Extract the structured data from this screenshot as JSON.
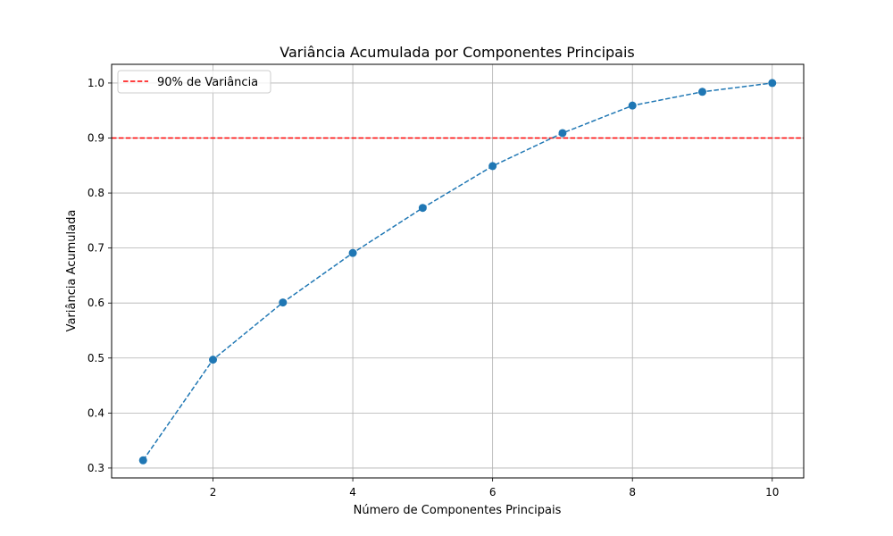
{
  "chart_data": {
    "type": "line",
    "title": "Variância Acumulada por Componentes Principais",
    "xlabel": "Número de Componentes Principais",
    "ylabel": "Variância Acumulada",
    "xlim": [
      0.55,
      10.45
    ],
    "ylim": [
      0.282,
      1.034
    ],
    "x_ticks": [
      2,
      4,
      6,
      8,
      10
    ],
    "y_ticks": [
      0.3,
      0.4,
      0.5,
      0.6,
      0.7,
      0.8,
      0.9,
      1.0
    ],
    "x_tick_labels": [
      "2",
      "4",
      "6",
      "8",
      "10"
    ],
    "y_tick_labels": [
      "0.3",
      "0.4",
      "0.5",
      "0.6",
      "0.7",
      "0.8",
      "0.9",
      "1.0"
    ],
    "grid": true,
    "legend_position": "top-left",
    "series": [
      {
        "x": [
          1,
          2,
          3,
          4,
          5,
          6,
          7,
          8,
          9,
          10
        ],
        "values": [
          0.314,
          0.497,
          0.601,
          0.691,
          0.773,
          0.849,
          0.909,
          0.959,
          0.984,
          1.0
        ],
        "color": "#1f77b4",
        "line_style": "dashed",
        "marker": "circle"
      }
    ],
    "reference_lines": [
      {
        "axis": "y",
        "value": 0.9,
        "label": "90% de Variância",
        "color": "#ff0000",
        "line_style": "dashed"
      }
    ]
  }
}
